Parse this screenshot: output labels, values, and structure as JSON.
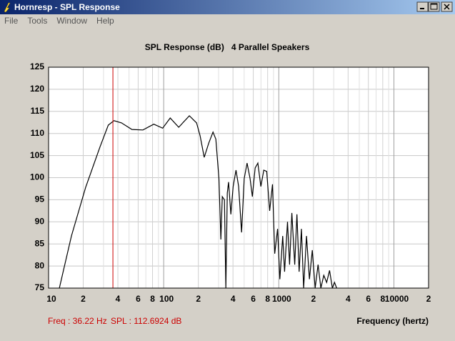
{
  "window": {
    "title": "Hornresp - SPL Response",
    "menu": [
      "File",
      "Tools",
      "Window",
      "Help"
    ]
  },
  "chart_data": {
    "type": "line",
    "title": "SPL Response (dB)   4 Parallel Speakers",
    "xlabel": "Frequency (hertz)",
    "xscale": "log",
    "grid": true,
    "color": "#000000",
    "xlim": [
      10,
      20000
    ],
    "ylim": [
      75,
      125
    ],
    "yticks": [
      75,
      80,
      85,
      90,
      95,
      100,
      105,
      110,
      115,
      120,
      125
    ],
    "xticks": [
      10,
      {
        "value": 20,
        "label": "2"
      },
      {
        "value": 40,
        "label": "4"
      },
      {
        "value": 60,
        "label": "6"
      },
      {
        "value": 80,
        "label": "8"
      },
      100,
      {
        "value": 200,
        "label": "2"
      },
      {
        "value": 400,
        "label": "4"
      },
      {
        "value": 600,
        "label": "6"
      },
      {
        "value": 800,
        "label": "8"
      },
      1000,
      {
        "value": 2000,
        "label": "2"
      },
      {
        "value": 4000,
        "label": "4"
      },
      {
        "value": 6000,
        "label": "6"
      },
      {
        "value": 8000,
        "label": "8"
      },
      10000,
      {
        "value": 20000,
        "label": "2"
      }
    ],
    "minor_xticks": [
      30,
      50,
      70,
      90,
      300,
      500,
      700,
      900,
      3000,
      5000,
      7000,
      9000
    ],
    "x": [
      12.4,
      15.8,
      21,
      28,
      33,
      37,
      43,
      53,
      66,
      82,
      98,
      114,
      135,
      167,
      193,
      207,
      225,
      246,
      268,
      284,
      302,
      314,
      323,
      337,
      347,
      357,
      366,
      383,
      401,
      425,
      448,
      475,
      501,
      530,
      563,
      589,
      623,
      658,
      698,
      741,
      785,
      832,
      882,
      922,
      976,
      1022,
      1082,
      1122,
      1190,
      1240,
      1298,
      1375,
      1436,
      1502,
      1572,
      1643,
      1741,
      1845,
      1953,
      2070,
      2192,
      2320,
      2460,
      2605,
      2760,
      2920,
      3045,
      3180
    ],
    "values": [
      75,
      86.8,
      97.8,
      107,
      111.9,
      112.9,
      112.4,
      110.9,
      110.8,
      112.1,
      111.2,
      113.5,
      111.4,
      114,
      112.4,
      109.5,
      104.6,
      107.8,
      110.3,
      108.7,
      99.8,
      86,
      95.7,
      95,
      75,
      96.5,
      99,
      91.7,
      98,
      101.7,
      98,
      87.6,
      99.8,
      103.3,
      99.8,
      95.7,
      102.2,
      103.3,
      98,
      101.7,
      101.4,
      92.5,
      98.5,
      82.8,
      88.4,
      77,
      86.8,
      78.7,
      90,
      80.3,
      92,
      80.3,
      91.7,
      78.7,
      88.4,
      75,
      86.8,
      77,
      83.6,
      75,
      80.3,
      75,
      77.9,
      76.3,
      79,
      75,
      76.3,
      75
    ],
    "cursor": {
      "freq": 36.22,
      "spl": 112.6924,
      "color": "#cc0000",
      "freq_label": "Freq : 36.22 Hz",
      "spl_label": "SPL : 112.6924 dB"
    }
  }
}
